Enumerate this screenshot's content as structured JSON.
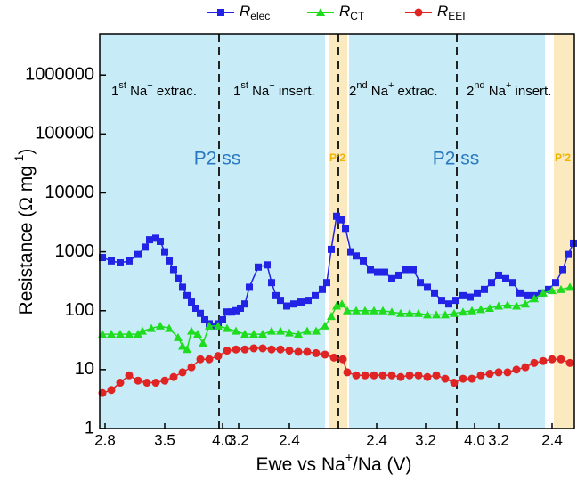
{
  "chart_data": {
    "type": "line",
    "log_y": true,
    "ylabel": [
      "Resistance (Ω mg",
      "-1",
      ")"
    ],
    "xlabel": [
      "Ewe vs Na",
      "+",
      "/Na (V)"
    ],
    "ylim": [
      1,
      5000000
    ],
    "yticks": [
      1,
      10,
      100,
      1000,
      10000,
      100000,
      1000000
    ],
    "xlim": [
      0,
      533
    ],
    "xticks": [
      {
        "value": 6,
        "label": "2.8"
      },
      {
        "value": 73,
        "label": "3.5"
      },
      {
        "value": 138,
        "label": "4.0"
      },
      {
        "value": 156,
        "label": "3.2"
      },
      {
        "value": 213,
        "label": "2.4"
      },
      {
        "value": 311,
        "label": "2.4"
      },
      {
        "value": 366,
        "label": "3.2"
      },
      {
        "value": 421,
        "label": "4.0"
      },
      {
        "value": 448,
        "label": "3.2"
      },
      {
        "value": 508,
        "label": "2.4"
      }
    ],
    "annotations": [
      [
        "1",
        "st",
        " Na",
        "+",
        " extrac."
      ],
      [
        "1",
        "st",
        " Na",
        "+",
        " insert."
      ],
      [
        "2",
        "nd",
        " Na",
        "+",
        " extrac."
      ],
      [
        "2",
        "nd",
        " Na",
        "+",
        " insert."
      ],
      "P2 ss",
      "P2 ss",
      "P’2",
      "P’2"
    ],
    "series": [
      {
        "name": [
          "R",
          "elec"
        ],
        "color": "#2323e6",
        "marker": "square",
        "x": [
          3,
          13,
          23,
          33,
          43,
          51,
          56,
          63,
          68,
          73,
          78,
          83,
          88,
          93,
          98,
          103,
          108,
          113,
          118,
          123,
          128,
          133,
          138,
          143,
          148,
          153,
          158,
          163,
          168,
          178,
          188,
          193,
          198,
          203,
          210,
          218,
          226,
          234,
          242,
          250,
          255,
          260,
          266,
          271,
          276,
          282,
          288,
          296,
          304,
          312,
          320,
          328,
          336,
          344,
          352,
          360,
          368,
          376,
          384,
          392,
          400,
          408,
          416,
          424,
          432,
          440,
          448,
          456,
          464,
          472,
          480,
          488,
          496,
          504,
          512,
          520,
          526,
          532
        ],
        "values": [
          800,
          700,
          650,
          700,
          900,
          1200,
          1600,
          1700,
          1500,
          1000,
          700,
          500,
          350,
          250,
          180,
          140,
          110,
          90,
          70,
          60,
          55,
          60,
          70,
          95,
          95,
          100,
          110,
          130,
          250,
          550,
          600,
          300,
          180,
          150,
          120,
          130,
          140,
          150,
          180,
          230,
          300,
          1100,
          4000,
          3500,
          2500,
          1000,
          850,
          700,
          500,
          450,
          450,
          350,
          400,
          500,
          500,
          300,
          250,
          200,
          150,
          130,
          150,
          180,
          170,
          200,
          230,
          300,
          400,
          350,
          300,
          200,
          180,
          180,
          200,
          230,
          300,
          500,
          900,
          1400
        ]
      },
      {
        "name": [
          "R",
          "CT"
        ],
        "color": "#1fdc1f",
        "marker": "triangle",
        "x": [
          3,
          13,
          23,
          33,
          43,
          48,
          58,
          68,
          78,
          88,
          93,
          98,
          103,
          110,
          116,
          123,
          133,
          143,
          153,
          163,
          173,
          183,
          193,
          203,
          213,
          223,
          233,
          243,
          253,
          260,
          266,
          272,
          278,
          288,
          298,
          308,
          318,
          328,
          338,
          348,
          358,
          368,
          378,
          388,
          398,
          408,
          418,
          428,
          438,
          448,
          458,
          468,
          478,
          488,
          498,
          508,
          518,
          528
        ],
        "values": [
          40,
          40,
          40,
          40,
          40,
          45,
          50,
          55,
          50,
          35,
          25,
          22,
          45,
          40,
          28,
          55,
          55,
          50,
          45,
          40,
          40,
          40,
          45,
          45,
          42,
          40,
          45,
          45,
          55,
          80,
          120,
          130,
          100,
          100,
          100,
          100,
          100,
          95,
          90,
          90,
          90,
          85,
          85,
          85,
          90,
          95,
          100,
          105,
          110,
          120,
          125,
          120,
          130,
          160,
          200,
          220,
          230,
          250
        ]
      },
      {
        "name": [
          "R",
          "EEI"
        ],
        "color": "#e02424",
        "marker": "circle",
        "x": [
          3,
          13,
          23,
          33,
          43,
          53,
          63,
          73,
          83,
          93,
          103,
          113,
          123,
          133,
          143,
          153,
          163,
          173,
          183,
          193,
          203,
          213,
          223,
          233,
          243,
          253,
          263,
          273,
          278,
          288,
          298,
          308,
          318,
          328,
          338,
          348,
          358,
          368,
          378,
          388,
          398,
          408,
          418,
          428,
          438,
          448,
          458,
          468,
          478,
          488,
          498,
          508,
          518,
          528
        ],
        "values": [
          4,
          4.5,
          6,
          8,
          6.5,
          6,
          6,
          6.5,
          7.5,
          9,
          11,
          15,
          15,
          17,
          21,
          22,
          22,
          23,
          23,
          22,
          22,
          21,
          20,
          20,
          19,
          18,
          16,
          15,
          9,
          8,
          8,
          8,
          8,
          8,
          7.5,
          8,
          8,
          7.5,
          8,
          7,
          6,
          7,
          7,
          8,
          8.5,
          9,
          9,
          10,
          11,
          13,
          14,
          15,
          15,
          13
        ]
      }
    ]
  }
}
